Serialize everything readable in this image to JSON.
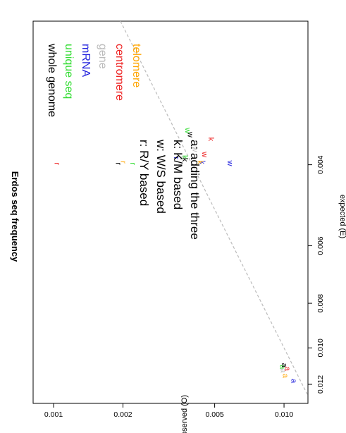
{
  "chart_data": {
    "type": "scatter",
    "title": "Erdos seq frequency",
    "xlabel": "expected (E)",
    "ylabel": "observed (O)",
    "x_scale": "log",
    "y_scale": "log",
    "xlim": [
      0.00195,
      0.0132
    ],
    "ylim": [
      0.000815,
      0.0127
    ],
    "x_ticks": [
      {
        "value": 0.004,
        "label": "0.004"
      },
      {
        "value": 0.006,
        "label": "0.006"
      },
      {
        "value": 0.008,
        "label": "0.008"
      },
      {
        "value": 0.01,
        "label": "0.010"
      },
      {
        "value": 0.012,
        "label": "0.012"
      }
    ],
    "y_ticks": [
      {
        "value": 0.001,
        "label": "0.001"
      },
      {
        "value": 0.002,
        "label": "0.002"
      },
      {
        "value": 0.005,
        "label": "0.005"
      },
      {
        "value": 0.01,
        "label": "0.010"
      }
    ],
    "reference_line": "O = E",
    "legend_sets": [
      {
        "label": "whole genome",
        "color": "#000000"
      },
      {
        "label": "unique seq",
        "color": "#33dd33"
      },
      {
        "label": "mRNA",
        "color": "#2222dd"
      },
      {
        "label": "gene",
        "color": "#bbbbbb"
      },
      {
        "label": "centromere",
        "color": "#ee2222"
      },
      {
        "label": "telomere",
        "color": "#ffa500"
      }
    ],
    "legend_types": [
      "r: R/Y based",
      "w: W/S based",
      "k: K/M based",
      "a: adding the three"
    ],
    "points": [
      {
        "label": "a",
        "color": "#2222dd",
        "x": 0.0118,
        "y": 0.011
      },
      {
        "label": "a",
        "color": "#ee2222",
        "x": 0.0111,
        "y": 0.0103
      },
      {
        "label": "a",
        "color": "#ffa500",
        "x": 0.0115,
        "y": 0.0101
      },
      {
        "label": "a",
        "color": "#bbbbbb",
        "x": 0.0112,
        "y": 0.0099
      },
      {
        "label": "a",
        "color": "#33dd33",
        "x": 0.011,
        "y": 0.0098
      },
      {
        "label": "a",
        "color": "#000000",
        "x": 0.0109,
        "y": 0.01
      },
      {
        "label": "w",
        "color": "#2222dd",
        "x": 0.00397,
        "y": 0.0058
      },
      {
        "label": "w",
        "color": "#ee2222",
        "x": 0.0038,
        "y": 0.0045
      },
      {
        "label": "w",
        "color": "#bbbbbb",
        "x": 0.0037,
        "y": 0.0041
      },
      {
        "label": "w",
        "color": "#000000",
        "x": 0.00344,
        "y": 0.0039
      },
      {
        "label": "w",
        "color": "#33dd33",
        "x": 0.00337,
        "y": 0.0038
      },
      {
        "label": "k",
        "color": "#ee2222",
        "x": 0.00352,
        "y": 0.0048
      },
      {
        "label": "k",
        "color": "#2222dd",
        "x": 0.00395,
        "y": 0.0044
      },
      {
        "label": "k",
        "color": "#ffa500",
        "x": 0.00395,
        "y": 0.0043
      },
      {
        "label": "k",
        "color": "#000000",
        "x": 0.0039,
        "y": 0.0037
      },
      {
        "label": "k",
        "color": "#33dd33",
        "x": 0.00385,
        "y": 0.0037
      },
      {
        "label": "k",
        "color": "#bbbbbb",
        "x": 0.00387,
        "y": 0.0036
      },
      {
        "label": "r",
        "color": "#2222dd",
        "x": 0.00387,
        "y": 0.0034
      },
      {
        "label": "r",
        "color": "#33dd33",
        "x": 0.00398,
        "y": 0.0022
      },
      {
        "label": "r",
        "color": "#ffa500",
        "x": 0.00395,
        "y": 0.002
      },
      {
        "label": "r",
        "color": "#000000",
        "x": 0.00398,
        "y": 0.0019
      },
      {
        "label": "r",
        "color": "#ee2222",
        "x": 0.00398,
        "y": 0.00103
      }
    ]
  }
}
